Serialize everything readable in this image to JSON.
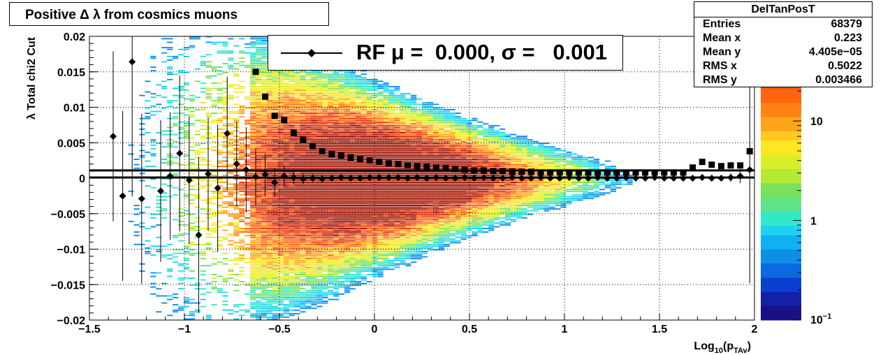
{
  "title": "Positive Δ λ from cosmics muons",
  "stats": {
    "name": "DelTanPosT",
    "rows": [
      {
        "key": "Entries",
        "value": "68379"
      },
      {
        "key": "Mean x",
        "value": "0.223"
      },
      {
        "key": "Mean y",
        "value": "4.405e−05"
      },
      {
        "key": "RMS x",
        "value": "0.5022"
      },
      {
        "key": "RMS y",
        "value": "0.003466"
      }
    ]
  },
  "legend": {
    "label": "RF μ =  0.000, σ =   0.001"
  },
  "chart_data": {
    "type": "heatmap",
    "xlabel": "Log10(pTAv)",
    "ylabel": "λ  Total chi2 Cut",
    "xlim": [
      -1.5,
      2
    ],
    "ylim": [
      -0.02,
      0.02
    ],
    "grid": true,
    "xticks": [
      "−1.5",
      "−1",
      "−0.5",
      "0",
      "0.5",
      "1",
      "1.5",
      "2"
    ],
    "yticks": [
      "−0.02",
      "−0.015",
      "−0.01",
      "−0.005",
      "0",
      "0.005",
      "0.01",
      "0.015",
      "0.02"
    ],
    "colorbar": {
      "scale": "log",
      "min": 0.1,
      "ticks": [
        "10−1",
        "1",
        "10"
      ]
    },
    "colors": {
      "palette": [
        "#1a0f86",
        "#0b3fd0",
        "#0d8fe8",
        "#1cd2f2",
        "#33e8c8",
        "#7be15a",
        "#d8ee2a",
        "#fde725",
        "#ffa41a",
        "#ff6410",
        "#e0330a",
        "#a01505"
      ],
      "markers": "#000000"
    },
    "series": [
      {
        "name": "RF",
        "marker": "diamond",
        "x": [
          -1.375,
          -1.325,
          -1.275,
          -1.225,
          -1.125,
          -1.075,
          -1.025,
          -0.975,
          -0.925,
          -0.875,
          -0.825,
          -0.775,
          -0.725,
          -0.675,
          -0.625,
          -0.575,
          -0.525,
          -0.475,
          -0.425,
          -0.375,
          -0.325,
          -0.275,
          -0.225,
          -0.175,
          -0.125,
          -0.075,
          -0.025,
          0.025,
          0.075,
          0.125,
          0.175,
          0.225,
          0.275,
          0.325,
          0.375,
          0.425,
          0.475,
          0.525,
          0.575,
          0.625,
          0.675,
          0.725,
          0.775,
          0.825,
          0.875,
          0.925,
          0.975,
          1.025,
          1.075,
          1.125,
          1.175,
          1.225,
          1.275,
          1.325,
          1.375,
          1.425,
          1.475,
          1.525,
          1.575,
          1.625,
          1.675,
          1.725,
          1.775,
          1.825,
          1.875,
          1.925,
          1.975
        ],
        "y": [
          0.0059,
          -0.0025,
          0.0164,
          -0.0029,
          -0.0018,
          0.0003,
          0.0035,
          -0.0003,
          -0.008,
          0.0006,
          -0.0014,
          0.0063,
          0.002,
          0.0012,
          0.0002,
          0.0005,
          -0.0006,
          0.0003,
          0.0001,
          -0.0001,
          0.0,
          -0.0001,
          0.0,
          0.0001,
          0.0,
          0.0,
          0.0001,
          0.0001,
          0.0001,
          0.0001,
          0.0,
          0.0001,
          0.0,
          0.0001,
          0.0,
          0.0,
          0.0001,
          0.0,
          0.0001,
          0.0,
          0.0,
          0.0001,
          0.0,
          0.0,
          0.0001,
          0.0,
          0.0,
          0.0001,
          0.0,
          0.0,
          0.0001,
          0.0,
          0.0,
          0.0001,
          0.0,
          0.0,
          0.0001,
          0.0,
          0.0,
          0.0,
          0.0,
          0.0001,
          0.0,
          0.0,
          0.0001,
          0.0003,
          0.0012
        ],
        "yerr": [
          0.012,
          0.012,
          0.019,
          0.012,
          0.01,
          0.009,
          0.011,
          0.009,
          0.011,
          0.008,
          0.009,
          0.008,
          0.006,
          0.006,
          0.004,
          0.003,
          0.002,
          0.0015,
          0.001,
          0.0008,
          0.0006,
          0.0005,
          0.0004,
          0.0003,
          0.0003,
          0.0002,
          0.0002,
          0.0002,
          0.0002,
          0.0002,
          0.0002,
          0.0002,
          0.0002,
          0.0002,
          0.0002,
          0.0002,
          0.0002,
          0.0002,
          0.0002,
          0.0002,
          0.0002,
          0.0002,
          0.0002,
          0.0002,
          0.0002,
          0.0002,
          0.0002,
          0.0002,
          0.0002,
          0.0002,
          0.0002,
          0.0002,
          0.0002,
          0.0002,
          0.0002,
          0.0002,
          0.0002,
          0.0002,
          0.0002,
          0.0002,
          0.0003,
          0.0003,
          0.0003,
          0.0004,
          0.0006,
          0.001,
          0.016
        ]
      },
      {
        "name": "",
        "marker": "square",
        "x": [
          -0.625,
          -0.575,
          -0.525,
          -0.475,
          -0.425,
          -0.375,
          -0.325,
          -0.275,
          -0.225,
          -0.175,
          -0.125,
          -0.075,
          -0.025,
          0.025,
          0.075,
          0.125,
          0.175,
          0.225,
          0.275,
          0.325,
          0.375,
          0.425,
          0.475,
          0.525,
          0.575,
          0.625,
          0.675,
          0.725,
          0.775,
          0.825,
          0.875,
          0.925,
          0.975,
          1.025,
          1.075,
          1.125,
          1.175,
          1.225,
          1.275,
          1.325,
          1.375,
          1.425,
          1.475,
          1.525,
          1.575,
          1.625,
          1.675,
          1.725,
          1.775,
          1.825,
          1.875,
          1.925,
          1.975
        ],
        "y": [
          0.015,
          0.0115,
          0.0088,
          0.0082,
          0.0064,
          0.0054,
          0.0045,
          0.0038,
          0.0034,
          0.0032,
          0.0029,
          0.0027,
          0.0025,
          0.0023,
          0.0021,
          0.002,
          0.0018,
          0.0017,
          0.0016,
          0.0015,
          0.0014,
          0.0013,
          0.0012,
          0.0011,
          0.0011,
          0.001,
          0.001,
          0.0009,
          0.0009,
          0.0009,
          0.0008,
          0.0008,
          0.0008,
          0.0008,
          0.0008,
          0.0008,
          0.0008,
          0.0008,
          0.0008,
          0.0008,
          0.0008,
          0.0008,
          0.0008,
          0.0008,
          0.0008,
          0.0008,
          0.0015,
          0.0023,
          0.0019,
          0.0017,
          0.0018,
          0.0018,
          0.0038
        ]
      }
    ],
    "fit_lines": [
      {
        "y": 0.0011,
        "x": [
          -1.5,
          2
        ]
      },
      {
        "y": 0.0001,
        "x": [
          -1.5,
          2
        ]
      }
    ]
  }
}
